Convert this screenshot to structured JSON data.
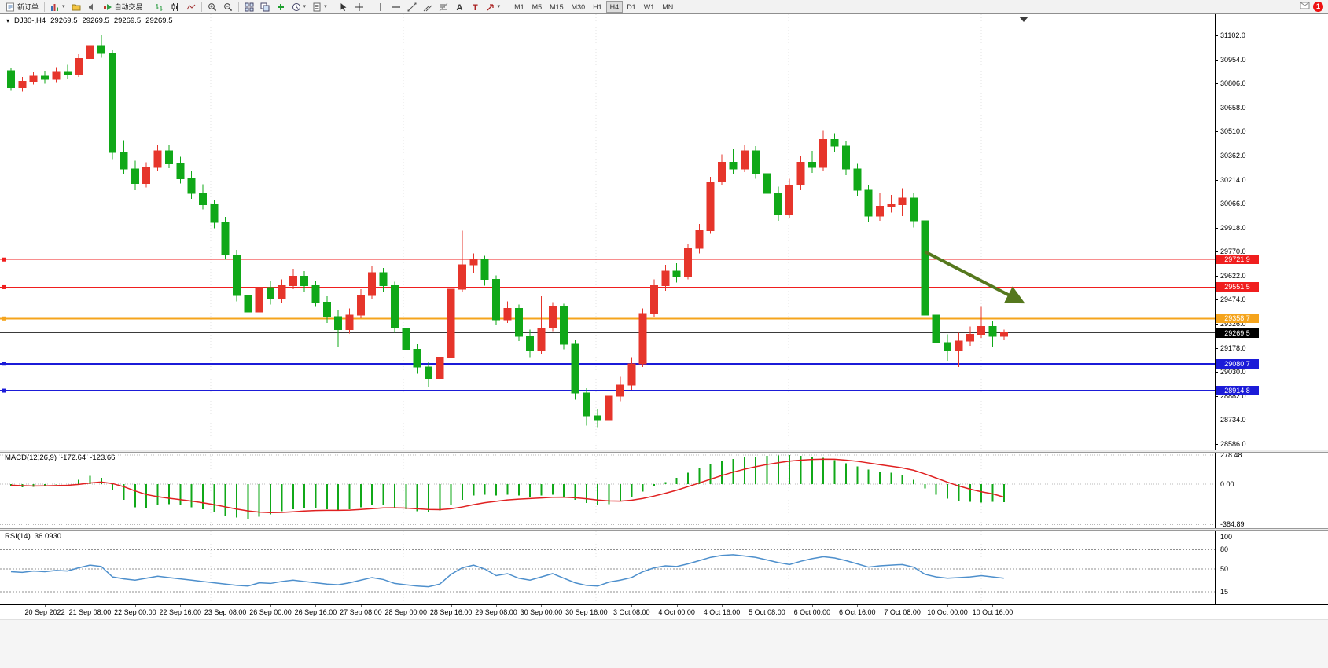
{
  "toolbar": {
    "new_order_label": "新订单",
    "auto_trading_label": "自动交易",
    "timeframes": [
      "M1",
      "M5",
      "M15",
      "M30",
      "H1",
      "H4",
      "D1",
      "W1",
      "MN"
    ],
    "active_timeframe": "H4",
    "notification_badge": "1",
    "icon_names": [
      "new-order-icon",
      "chart-window-icon",
      "profiles-icon",
      "alerts-icon",
      "auto-trading-icon",
      "bar-chart-type-icon",
      "candlestick-type-icon",
      "line-chart-type-icon",
      "zoom-in-icon",
      "zoom-out-icon",
      "tile-windows-icon",
      "cascade-windows-icon",
      "indicators-icon",
      "periods-clock-icon",
      "templates-icon",
      "cursor-icon",
      "crosshair-icon",
      "vertical-line-icon",
      "horizontal-line-icon",
      "trendline-icon",
      "channel-icon",
      "fibonacci-icon",
      "text-icon",
      "text-label-icon",
      "arrows-icon",
      "news-icon"
    ]
  },
  "chart": {
    "symbol_period": "DJ30-,H4",
    "open": "29269.5",
    "high": "29269.5",
    "low": "29269.5",
    "close": "29269.5",
    "price_axis_labels": [
      "31102.0",
      "30954.0",
      "30806.0",
      "30658.0",
      "30510.0",
      "30362.0",
      "30214.0",
      "30066.0",
      "29918.0",
      "29770.0",
      "29622.0",
      "29474.0",
      "29326.0",
      "29178.0",
      "29030.0",
      "28882.0",
      "28734.0",
      "28586.0"
    ],
    "price_tags": [
      {
        "text": "29721.9",
        "bg": "#f01e1e"
      },
      {
        "text": "29551.5",
        "bg": "#f01e1e"
      },
      {
        "text": "29358.7",
        "bg": "#f5a41c"
      },
      {
        "text": "29269.5",
        "bg": "#000000"
      },
      {
        "text": "29080.7",
        "bg": "#1b1bd8"
      },
      {
        "text": "28914.8",
        "bg": "#1b1bd8"
      }
    ]
  },
  "macd_panel": {
    "name": "MACD(12,26,9)",
    "value_main": "-172.64",
    "value_signal": "-123.66",
    "axis_labels": [
      "278.48",
      "0.00",
      "-384.89"
    ]
  },
  "rsi_panel": {
    "name": "RSI(14)",
    "value": "36.0930",
    "axis_labels": [
      "100",
      "80",
      "50",
      "15"
    ]
  },
  "chart_data": {
    "type": "candlestick",
    "title": "DJ30-,H4",
    "color_convention": "red = bullish (up), green = bearish (down)",
    "colors": {
      "up": "#e6352b",
      "down": "#10a818",
      "macd_histogram": "#10a818",
      "macd_signal": "#e02020",
      "rsi_line": "#4d8fcc",
      "bid_line": "#3a3a3a",
      "arrow": "#55781d"
    },
    "y_axis": {
      "min": 28586.0,
      "max": 31102.0,
      "tick_step": 148.0
    },
    "time_labels": [
      "20 Sep 2022",
      "21 Sep 08:00",
      "22 Sep 00:00",
      "22 Sep 16:00",
      "23 Sep 08:00",
      "26 Sep 00:00",
      "26 Sep 16:00",
      "27 Sep 08:00",
      "28 Sep 00:00",
      "28 Sep 16:00",
      "29 Sep 08:00",
      "30 Sep 00:00",
      "30 Sep 16:00",
      "3 Oct 08:00",
      "4 Oct 00:00",
      "4 Oct 16:00",
      "5 Oct 08:00",
      "6 Oct 00:00",
      "6 Oct 16:00",
      "7 Oct 08:00",
      "10 Oct 00:00",
      "10 Oct 16:00"
    ],
    "candles_ohlc": [
      [
        30885,
        30900,
        30760,
        30780
      ],
      [
        30780,
        30845,
        30755,
        30820
      ],
      [
        30820,
        30875,
        30800,
        30850
      ],
      [
        30850,
        30885,
        30805,
        30830
      ],
      [
        30830,
        30905,
        30815,
        30880
      ],
      [
        30880,
        30920,
        30835,
        30860
      ],
      [
        30860,
        30985,
        30845,
        30960
      ],
      [
        30960,
        31070,
        30945,
        31040
      ],
      [
        31040,
        31102,
        30965,
        30990
      ],
      [
        30990,
        31010,
        30340,
        30380
      ],
      [
        30380,
        30455,
        30245,
        30280
      ],
      [
        30280,
        30330,
        30150,
        30190
      ],
      [
        30190,
        30320,
        30165,
        30290
      ],
      [
        30290,
        30425,
        30270,
        30390
      ],
      [
        30390,
        30430,
        30285,
        30310
      ],
      [
        30310,
        30355,
        30190,
        30220
      ],
      [
        30220,
        30270,
        30095,
        30130
      ],
      [
        30130,
        30185,
        30030,
        30060
      ],
      [
        30060,
        30090,
        29915,
        29950
      ],
      [
        29950,
        29985,
        29720,
        29750
      ],
      [
        29750,
        29780,
        29465,
        29500
      ],
      [
        29500,
        29555,
        29350,
        29400
      ],
      [
        29400,
        29585,
        29385,
        29550
      ],
      [
        29550,
        29590,
        29445,
        29480
      ],
      [
        29480,
        29600,
        29455,
        29560
      ],
      [
        29560,
        29665,
        29540,
        29620
      ],
      [
        29620,
        29650,
        29525,
        29560
      ],
      [
        29560,
        29590,
        29430,
        29460
      ],
      [
        29460,
        29495,
        29330,
        29370
      ],
      [
        29370,
        29410,
        29180,
        29290
      ],
      [
        29290,
        29420,
        29265,
        29380
      ],
      [
        29380,
        29540,
        29360,
        29500
      ],
      [
        29500,
        29680,
        29480,
        29640
      ],
      [
        29640,
        29670,
        29520,
        29560
      ],
      [
        29560,
        29585,
        29270,
        29300
      ],
      [
        29300,
        29330,
        29130,
        29170
      ],
      [
        29170,
        29200,
        29020,
        29060
      ],
      [
        29060,
        29090,
        28940,
        28990
      ],
      [
        28990,
        29150,
        28960,
        29120
      ],
      [
        29120,
        29565,
        29100,
        29540
      ],
      [
        29540,
        29900,
        29520,
        29690
      ],
      [
        29690,
        29760,
        29640,
        29720
      ],
      [
        29720,
        29745,
        29560,
        29600
      ],
      [
        29600,
        29625,
        29320,
        29350
      ],
      [
        29350,
        29465,
        29330,
        29420
      ],
      [
        29420,
        29445,
        29220,
        29250
      ],
      [
        29250,
        29290,
        29120,
        29160
      ],
      [
        29160,
        29495,
        29140,
        29300
      ],
      [
        29300,
        29460,
        29280,
        29430
      ],
      [
        29430,
        29450,
        29170,
        29200
      ],
      [
        29200,
        29230,
        28860,
        28900
      ],
      [
        28900,
        28930,
        28700,
        28760
      ],
      [
        28760,
        28800,
        28690,
        28730
      ],
      [
        28730,
        28920,
        28710,
        28880
      ],
      [
        28880,
        29000,
        28850,
        28950
      ],
      [
        28950,
        29120,
        28920,
        29080
      ],
      [
        29080,
        29420,
        29060,
        29390
      ],
      [
        29390,
        29600,
        29370,
        29560
      ],
      [
        29560,
        29690,
        29530,
        29650
      ],
      [
        29650,
        29700,
        29580,
        29620
      ],
      [
        29620,
        29820,
        29600,
        29790
      ],
      [
        29790,
        29940,
        29760,
        29900
      ],
      [
        29900,
        30230,
        29880,
        30200
      ],
      [
        30200,
        30370,
        30180,
        30320
      ],
      [
        30320,
        30400,
        30250,
        30280
      ],
      [
        30280,
        30430,
        30260,
        30390
      ],
      [
        30390,
        30420,
        30220,
        30250
      ],
      [
        30250,
        30290,
        30090,
        30130
      ],
      [
        30130,
        30170,
        29960,
        30000
      ],
      [
        30000,
        30220,
        29975,
        30180
      ],
      [
        30180,
        30360,
        30150,
        30320
      ],
      [
        30320,
        30390,
        30255,
        30290
      ],
      [
        30290,
        30514,
        30270,
        30460
      ],
      [
        30460,
        30500,
        30380,
        30420
      ],
      [
        30420,
        30450,
        30240,
        30280
      ],
      [
        30280,
        30310,
        30110,
        30150
      ],
      [
        30150,
        30180,
        29950,
        29990
      ],
      [
        29990,
        30130,
        29960,
        30050
      ],
      [
        30050,
        30120,
        30010,
        30060
      ],
      [
        30060,
        30160,
        29990,
        30100
      ],
      [
        30100,
        30130,
        29920,
        29960
      ],
      [
        29960,
        29985,
        29350,
        29380
      ],
      [
        29380,
        29410,
        29140,
        29210
      ],
      [
        29210,
        29260,
        29100,
        29160
      ],
      [
        29160,
        29270,
        29060,
        29220
      ],
      [
        29220,
        29310,
        29190,
        29260
      ],
      [
        29260,
        29430,
        29240,
        29310
      ],
      [
        29310,
        29340,
        29180,
        29250
      ],
      [
        29250,
        29290,
        29230,
        29269.5
      ]
    ],
    "hlines": [
      {
        "price": 29721.9,
        "color": "#f01e1e",
        "width": 1
      },
      {
        "price": 29551.5,
        "color": "#f01e1e",
        "width": 1
      },
      {
        "price": 29358.7,
        "color": "#f5a41c",
        "width": 2
      },
      {
        "price": 29080.7,
        "color": "#1b1bd8",
        "width": 2
      },
      {
        "price": 28914.8,
        "color": "#1b1bd8",
        "width": 2
      }
    ],
    "bid_price": 29269.5,
    "arrow_annotation": {
      "from_bar": 81,
      "from_price": 29770,
      "to_bar": 89.5,
      "to_price": 29465
    },
    "macd": {
      "params": "12,26,9",
      "last_main": -172.64,
      "last_signal": -123.66,
      "axis": {
        "max_label": 278.48,
        "zero": 0.0,
        "min_label": -384.89
      },
      "histogram": [
        -20,
        -30,
        -25,
        -15,
        -5,
        0,
        40,
        80,
        60,
        -60,
        -150,
        -220,
        -230,
        -200,
        -190,
        -200,
        -220,
        -240,
        -270,
        -300,
        -320,
        -330,
        -310,
        -290,
        -260,
        -240,
        -230,
        -230,
        -240,
        -250,
        -240,
        -220,
        -200,
        -200,
        -220,
        -240,
        -260,
        -270,
        -250,
        -200,
        -150,
        -110,
        -100,
        -110,
        -100,
        -110,
        -120,
        -110,
        -100,
        -120,
        -150,
        -180,
        -200,
        -190,
        -160,
        -120,
        -70,
        -20,
        20,
        60,
        110,
        150,
        190,
        220,
        240,
        255,
        262,
        270,
        275,
        278,
        270,
        260,
        250,
        230,
        200,
        170,
        140,
        120,
        110,
        90,
        40,
        -40,
        -100,
        -140,
        -160,
        -170,
        -175,
        -170,
        -172.64
      ],
      "signal": [
        -10,
        -15,
        -18,
        -17,
        -14,
        -11,
        -3,
        10,
        20,
        5,
        -25,
        -65,
        -100,
        -120,
        -135,
        -148,
        -162,
        -178,
        -196,
        -217,
        -238,
        -256,
        -267,
        -272,
        -270,
        -264,
        -257,
        -252,
        -250,
        -250,
        -248,
        -242,
        -234,
        -227,
        -226,
        -229,
        -235,
        -242,
        -244,
        -235,
        -218,
        -196,
        -177,
        -164,
        -151,
        -143,
        -138,
        -132,
        -126,
        -125,
        -130,
        -140,
        -152,
        -160,
        -162,
        -154,
        -137,
        -114,
        -87,
        -58,
        -24,
        11,
        47,
        82,
        114,
        142,
        166,
        187,
        204,
        219,
        229,
        235,
        238,
        237,
        229,
        218,
        202,
        186,
        171,
        155,
        132,
        97,
        58,
        18,
        -18,
        -48,
        -73,
        -93,
        -123.66
      ]
    },
    "rsi": {
      "period": 14,
      "last": 36.093,
      "levels": [
        80,
        50,
        15
      ],
      "scale_labels": [
        100,
        80,
        50,
        15
      ],
      "values": [
        46,
        45,
        47,
        46,
        48,
        47,
        52,
        56,
        54,
        38,
        35,
        33,
        36,
        39,
        37,
        35,
        33,
        31,
        29,
        27,
        25,
        24,
        29,
        28,
        31,
        33,
        31,
        29,
        27,
        26,
        29,
        33,
        37,
        34,
        28,
        26,
        24,
        23,
        27,
        42,
        52,
        56,
        50,
        40,
        43,
        36,
        33,
        38,
        43,
        36,
        29,
        25,
        24,
        30,
        33,
        37,
        46,
        52,
        55,
        54,
        58,
        63,
        68,
        71,
        72,
        70,
        68,
        64,
        60,
        57,
        62,
        66,
        69,
        67,
        63,
        58,
        53,
        55,
        56,
        57,
        53,
        42,
        38,
        36,
        37,
        38,
        40,
        38,
        36.09
      ]
    }
  }
}
